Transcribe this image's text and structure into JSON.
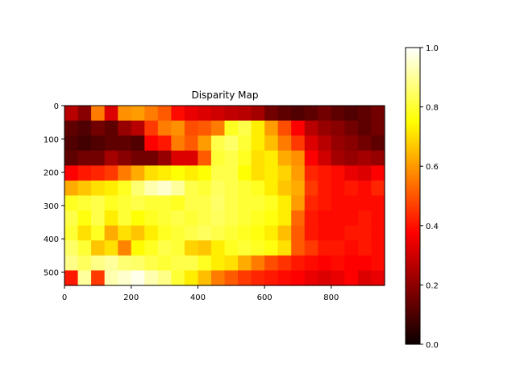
{
  "chart_data": {
    "type": "heatmap",
    "title": "Disparity Map",
    "xlabel": "",
    "ylabel": "",
    "colormap": "hot",
    "xlim": [
      0,
      960
    ],
    "ylim": [
      540,
      0
    ],
    "x_ticks": [
      0,
      200,
      400,
      600,
      800
    ],
    "y_ticks": [
      0,
      100,
      200,
      300,
      400,
      500
    ],
    "colorbar": {
      "range": [
        0.0,
        1.0
      ],
      "ticks": [
        "0.0",
        "0.2",
        "0.4",
        "0.6",
        "0.8",
        "1.0"
      ],
      "placement": "right"
    },
    "grid": false,
    "grid_resolution": {
      "cols": 24,
      "rows": 12
    },
    "values": [
      [
        0.25,
        0.18,
        0.55,
        0.3,
        0.58,
        0.6,
        0.55,
        0.5,
        0.38,
        0.32,
        0.3,
        0.28,
        0.26,
        0.25,
        0.22,
        0.15,
        0.12,
        0.1,
        0.12,
        0.15,
        0.12,
        0.1,
        0.12,
        0.15
      ],
      [
        0.12,
        0.1,
        0.15,
        0.12,
        0.2,
        0.25,
        0.45,
        0.55,
        0.58,
        0.48,
        0.5,
        0.55,
        0.78,
        0.82,
        0.72,
        0.6,
        0.48,
        0.35,
        0.25,
        0.2,
        0.18,
        0.15,
        0.12,
        0.15
      ],
      [
        0.1,
        0.08,
        0.1,
        0.12,
        0.12,
        0.1,
        0.35,
        0.4,
        0.55,
        0.5,
        0.6,
        0.82,
        0.85,
        0.8,
        0.72,
        0.65,
        0.55,
        0.45,
        0.3,
        0.25,
        0.2,
        0.18,
        0.15,
        0.12
      ],
      [
        0.12,
        0.15,
        0.15,
        0.22,
        0.18,
        0.15,
        0.15,
        0.2,
        0.3,
        0.3,
        0.5,
        0.8,
        0.82,
        0.78,
        0.7,
        0.72,
        0.62,
        0.58,
        0.35,
        0.28,
        0.22,
        0.2,
        0.22,
        0.2
      ],
      [
        0.35,
        0.4,
        0.42,
        0.45,
        0.55,
        0.62,
        0.7,
        0.72,
        0.75,
        0.72,
        0.75,
        0.82,
        0.82,
        0.75,
        0.7,
        0.72,
        0.68,
        0.6,
        0.42,
        0.4,
        0.38,
        0.32,
        0.3,
        0.35
      ],
      [
        0.62,
        0.66,
        0.7,
        0.72,
        0.78,
        0.86,
        0.92,
        0.95,
        0.9,
        0.82,
        0.8,
        0.84,
        0.82,
        0.8,
        0.78,
        0.72,
        0.66,
        0.62,
        0.45,
        0.4,
        0.38,
        0.4,
        0.38,
        0.42
      ],
      [
        0.78,
        0.8,
        0.82,
        0.78,
        0.8,
        0.82,
        0.8,
        0.8,
        0.78,
        0.82,
        0.82,
        0.85,
        0.82,
        0.8,
        0.8,
        0.78,
        0.72,
        0.6,
        0.42,
        0.4,
        0.38,
        0.38,
        0.38,
        0.38
      ],
      [
        0.82,
        0.76,
        0.82,
        0.72,
        0.8,
        0.75,
        0.78,
        0.8,
        0.82,
        0.8,
        0.82,
        0.84,
        0.82,
        0.8,
        0.78,
        0.76,
        0.72,
        0.52,
        0.4,
        0.38,
        0.38,
        0.38,
        0.4,
        0.38
      ],
      [
        0.8,
        0.7,
        0.78,
        0.62,
        0.7,
        0.66,
        0.72,
        0.78,
        0.8,
        0.82,
        0.84,
        0.82,
        0.8,
        0.78,
        0.76,
        0.72,
        0.65,
        0.5,
        0.4,
        0.38,
        0.38,
        0.4,
        0.4,
        0.38
      ],
      [
        0.85,
        0.8,
        0.66,
        0.7,
        0.56,
        0.74,
        0.78,
        0.82,
        0.8,
        0.68,
        0.66,
        0.72,
        0.78,
        0.8,
        0.78,
        0.76,
        0.7,
        0.5,
        0.45,
        0.4,
        0.4,
        0.38,
        0.4,
        0.38
      ],
      [
        0.88,
        0.84,
        0.88,
        0.9,
        0.86,
        0.85,
        0.82,
        0.8,
        0.82,
        0.82,
        0.78,
        0.72,
        0.7,
        0.62,
        0.55,
        0.48,
        0.44,
        0.4,
        0.38,
        0.36,
        0.38,
        0.35,
        0.36,
        0.38
      ],
      [
        0.4,
        0.9,
        0.45,
        0.92,
        0.95,
        0.98,
        0.92,
        0.88,
        0.8,
        0.72,
        0.65,
        0.55,
        0.5,
        0.45,
        0.42,
        0.4,
        0.38,
        0.35,
        0.32,
        0.3,
        0.32,
        0.35,
        0.3,
        0.32
      ]
    ]
  }
}
